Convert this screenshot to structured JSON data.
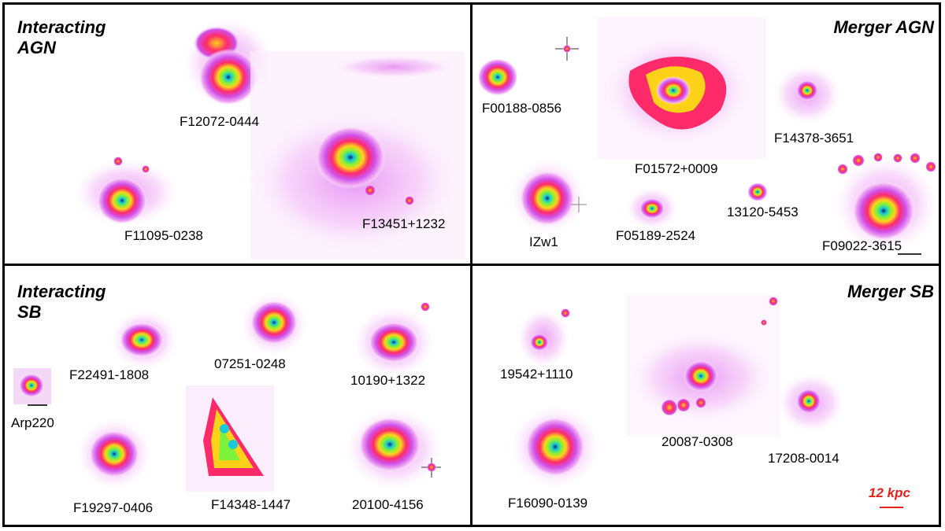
{
  "panels": {
    "interacting_agn": {
      "title_line1": "Interacting",
      "title_line2": "AGN"
    },
    "merger_agn": {
      "title": "Merger AGN"
    },
    "interacting_sb": {
      "title_line1": "Interacting",
      "title_line2": "SB"
    },
    "merger_sb": {
      "title": "Merger SB"
    }
  },
  "labels": {
    "f12072": "F12072-0444",
    "f11095": "F11095-0238",
    "f13451": "F13451+1232",
    "f00188": "F00188-0856",
    "f01572": "F01572+0009",
    "f14378": "F14378-3651",
    "izw1": "IZw1",
    "f05189": "F05189-2524",
    "s13120": "13120-5453",
    "f09022": "F09022-3615",
    "f22491": "F22491-1808",
    "s07251": "07251-0248",
    "s10190": "10190+1322",
    "arp220": "Arp220",
    "f19297": "F19297-0406",
    "f14348": "F14348-1447",
    "s20100": "20100-4156",
    "s19542": "19542+1110",
    "f16090": "F16090-0139",
    "s20087": "20087-0308",
    "s17208": "17208-0014"
  },
  "scale_bar": {
    "label": "12 kpc"
  },
  "colors": {
    "halo": "#f4b8f4",
    "outer": "#d04fe8",
    "mid": "#ff2a6a",
    "inner": "#ffd21a",
    "core1": "#7cf23a",
    "core2": "#19c9d8",
    "nucleus": "#10286a",
    "scale": "#e8201a"
  }
}
